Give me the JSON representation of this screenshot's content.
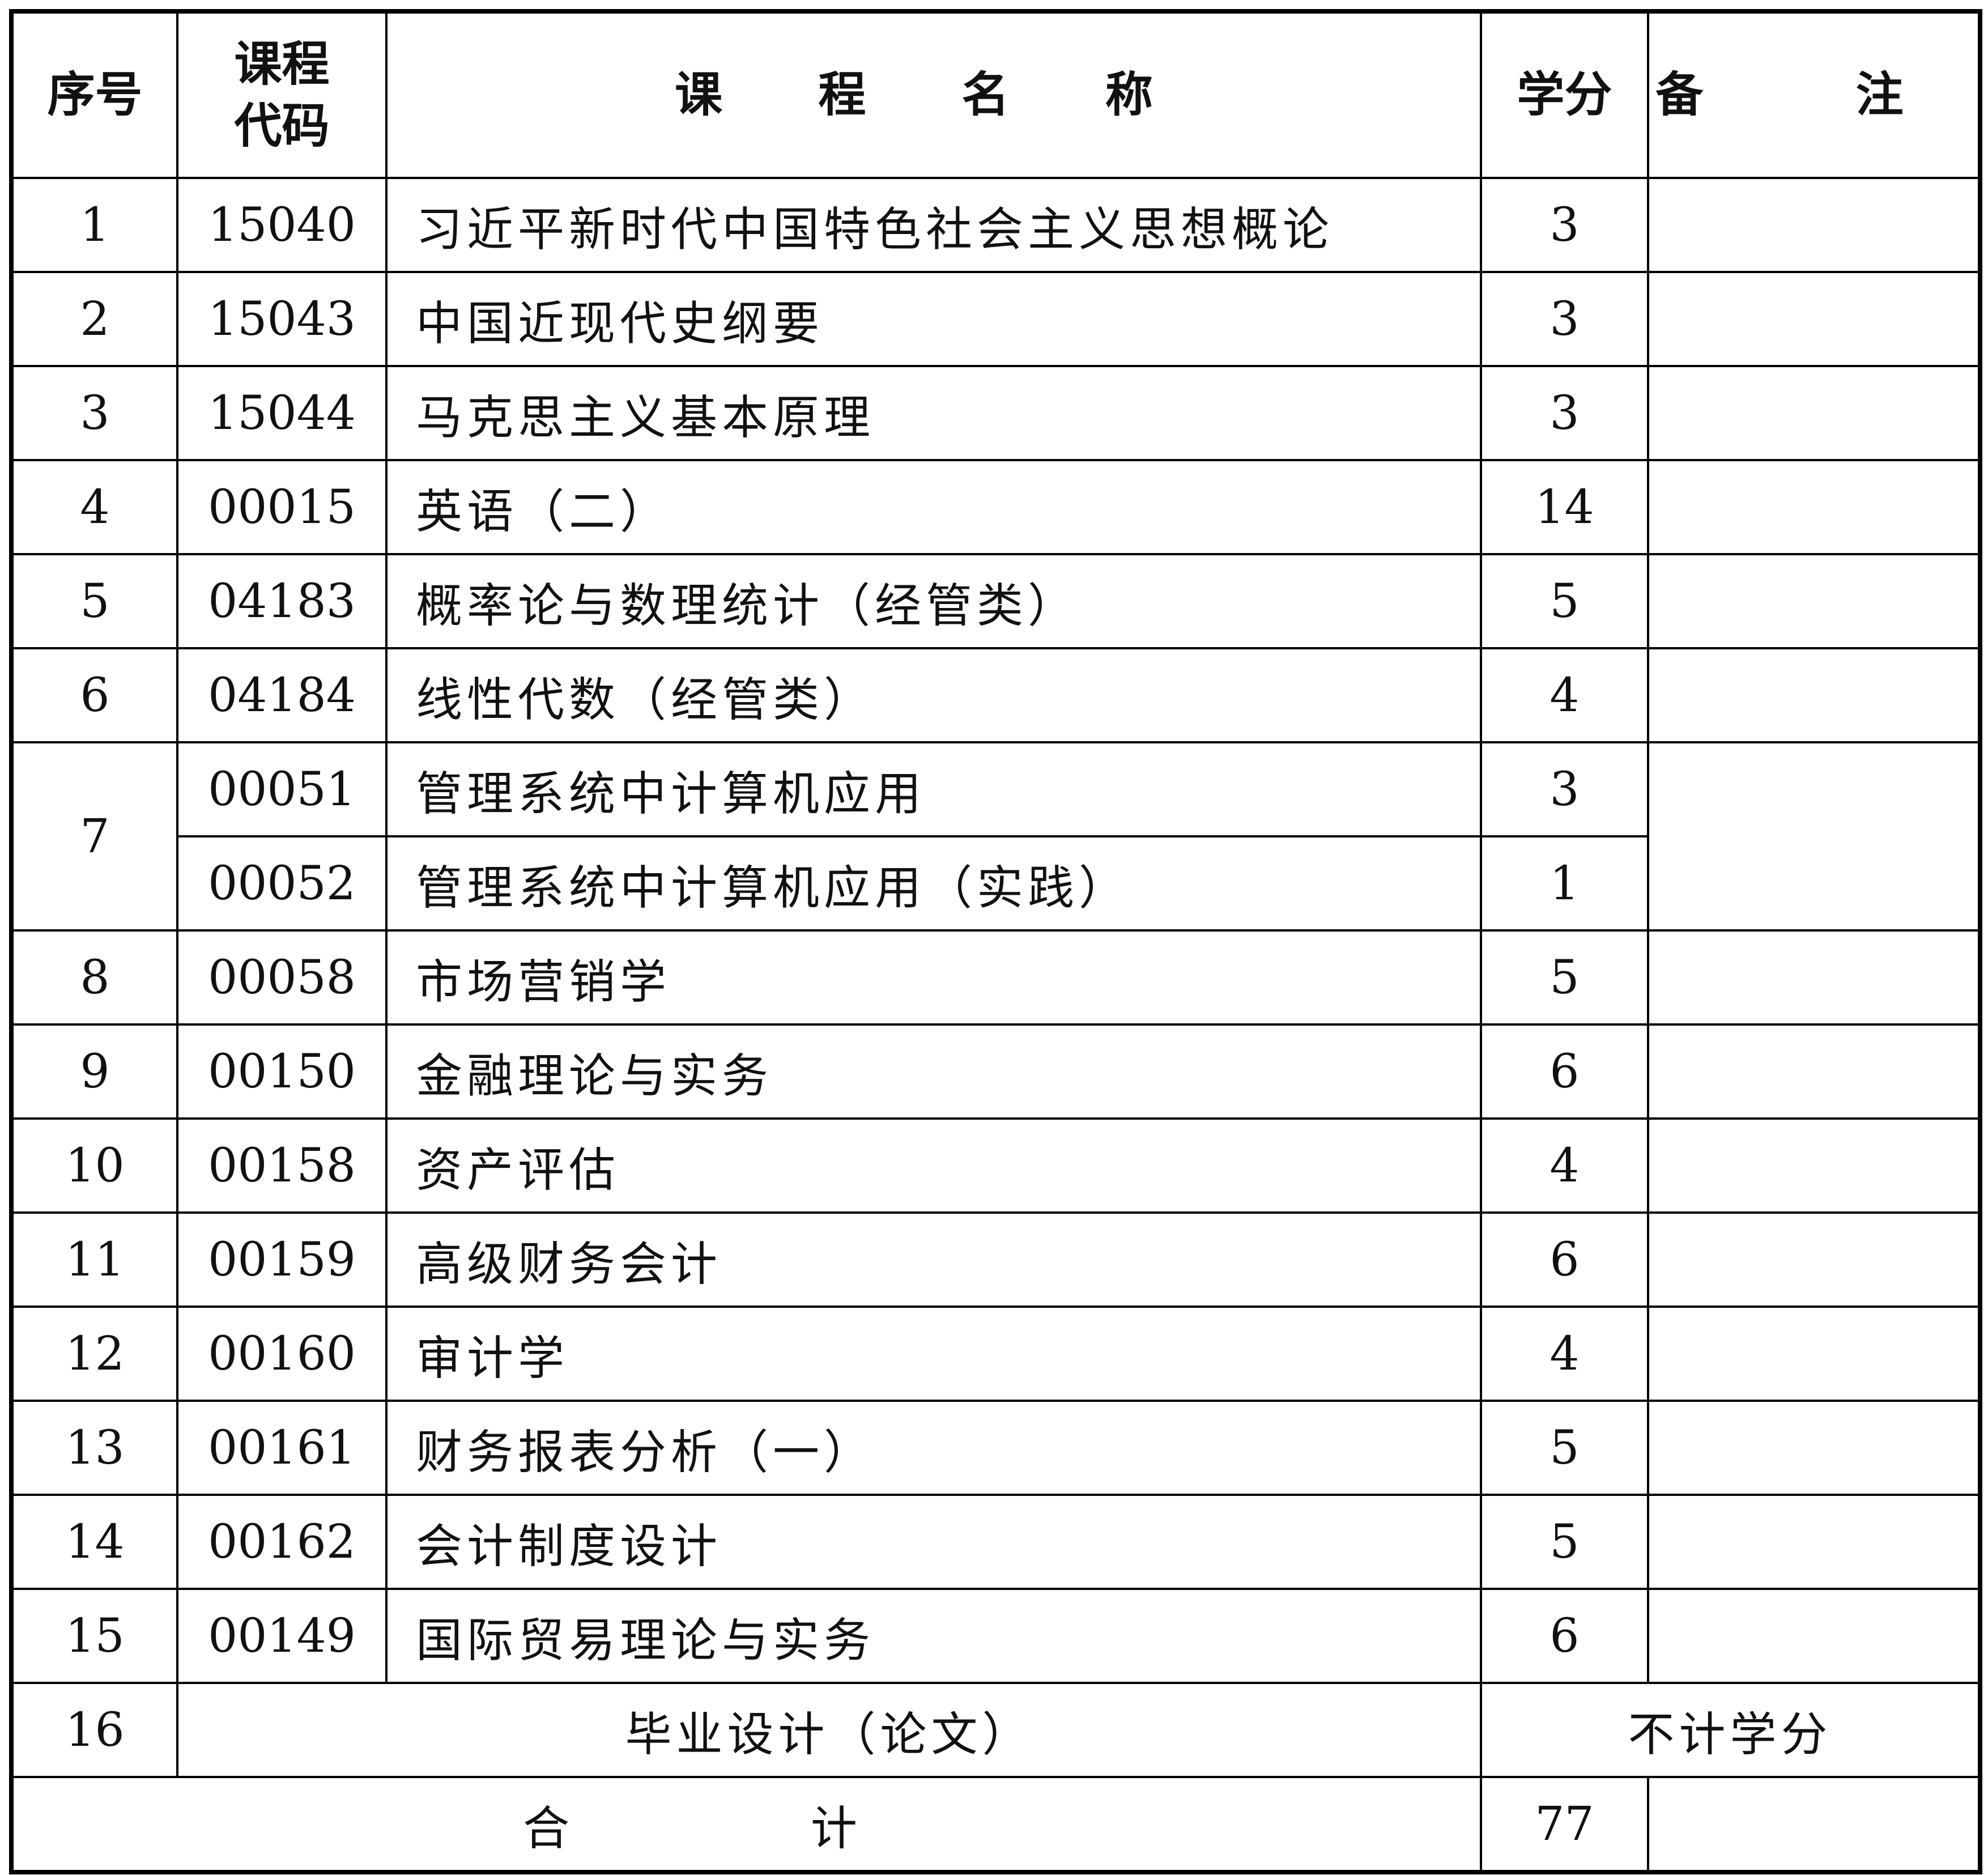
{
  "header": {
    "seq": "序号",
    "code": "课程代码",
    "name": "课 程 名 称",
    "credit": "学分",
    "remark": "备 注"
  },
  "rows": [
    {
      "seq": "1",
      "code": "15040",
      "name": "习近平新时代中国特色社会主义思想概论",
      "credit": "3"
    },
    {
      "seq": "2",
      "code": "15043",
      "name": "中国近现代史纲要",
      "credit": "3"
    },
    {
      "seq": "3",
      "code": "15044",
      "name": "马克思主义基本原理",
      "credit": "3"
    },
    {
      "seq": "4",
      "code": "00015",
      "name": "英语（二）",
      "credit": "14"
    },
    {
      "seq": "5",
      "code": "04183",
      "name": "概率论与数理统计（经管类）",
      "credit": "5"
    },
    {
      "seq": "6",
      "code": "04184",
      "name": "线性代数（经管类）",
      "credit": "4"
    },
    {
      "seq": "7",
      "code": "00051",
      "name": "管理系统中计算机应用",
      "credit": "3"
    },
    {
      "seq": "",
      "code": "00052",
      "name": "管理系统中计算机应用（实践）",
      "credit": "1"
    },
    {
      "seq": "8",
      "code": "00058",
      "name": "市场营销学",
      "credit": "5"
    },
    {
      "seq": "9",
      "code": "00150",
      "name": "金融理论与实务",
      "credit": "6"
    },
    {
      "seq": "10",
      "code": "00158",
      "name": "资产评估",
      "credit": "4"
    },
    {
      "seq": "11",
      "code": "00159",
      "name": "高级财务会计",
      "credit": "6"
    },
    {
      "seq": "12",
      "code": "00160",
      "name": "审计学",
      "credit": "4"
    },
    {
      "seq": "13",
      "code": "00161",
      "name": "财务报表分析（一）",
      "credit": "5"
    },
    {
      "seq": "14",
      "code": "00162",
      "name": "会计制度设计",
      "credit": "5"
    },
    {
      "seq": "15",
      "code": "00149",
      "name": "国际贸易理论与实务",
      "credit": "6"
    }
  ],
  "thesis": {
    "seq": "16",
    "name": "毕业设计（论文）",
    "credit": "不计学分"
  },
  "total": {
    "label": "合 计",
    "credit": "77"
  }
}
